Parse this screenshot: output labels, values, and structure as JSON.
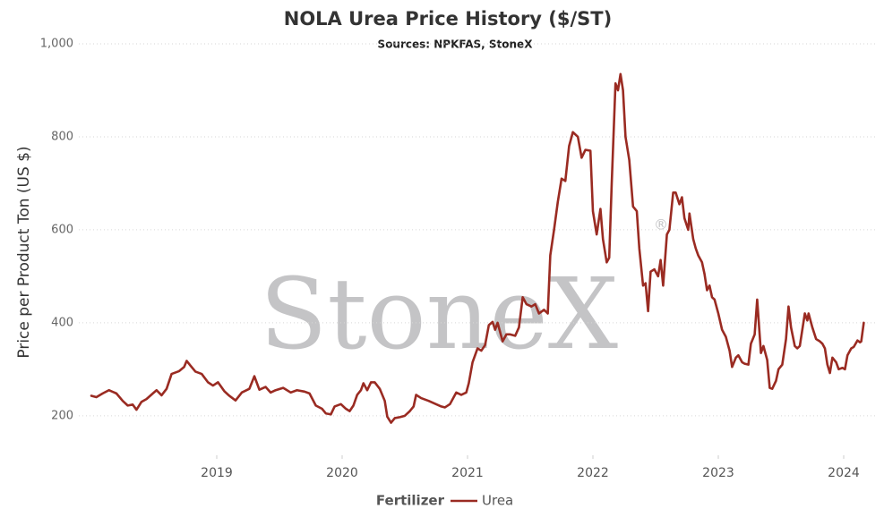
{
  "chart_data": {
    "type": "line",
    "title": "NOLA Urea Price History ($/ST)",
    "subtitle": "Sources: NPKFAS, StoneX",
    "y_label": "Price per Product Ton (US $)",
    "watermark": "StoneX",
    "watermark_mark": "®",
    "legend_title": "Fertilizer",
    "legend_position": "bottom",
    "grid": true,
    "xlim": [
      2017.9,
      2024.25
    ],
    "xticks": [
      2019,
      2020,
      2021,
      2022,
      2023,
      2024
    ],
    "ylim": [
      115,
      1000
    ],
    "yticks": [
      200,
      400,
      600,
      800,
      {
        "value": 1000,
        "label": "1,000"
      }
    ],
    "x": [
      2018.0,
      2018.04,
      2018.09,
      2018.14,
      2018.2,
      2018.25,
      2018.29,
      2018.33,
      2018.36,
      2018.4,
      2018.44,
      2018.49,
      2018.52,
      2018.56,
      2018.6,
      2018.64,
      2018.7,
      2018.74,
      2018.76,
      2018.79,
      2018.83,
      2018.88,
      2018.93,
      2018.97,
      2019.01,
      2019.06,
      2019.1,
      2019.15,
      2019.2,
      2019.26,
      2019.3,
      2019.34,
      2019.39,
      2019.43,
      2019.47,
      2019.53,
      2019.59,
      2019.64,
      2019.7,
      2019.74,
      2019.79,
      2019.84,
      2019.87,
      2019.91,
      2019.94,
      2019.99,
      2020.03,
      2020.06,
      2020.09,
      2020.12,
      2020.15,
      2020.17,
      2020.2,
      2020.23,
      2020.26,
      2020.3,
      2020.34,
      2020.36,
      2020.39,
      2020.42,
      2020.46,
      2020.5,
      2020.54,
      2020.57,
      2020.59,
      2020.63,
      2020.69,
      2020.74,
      2020.79,
      2020.82,
      2020.86,
      2020.89,
      2020.91,
      2020.95,
      2020.99,
      2021.01,
      2021.04,
      2021.08,
      2021.11,
      2021.14,
      2021.17,
      2021.2,
      2021.22,
      2021.24,
      2021.28,
      2021.31,
      2021.34,
      2021.38,
      2021.41,
      2021.44,
      2021.47,
      2021.51,
      2021.54,
      2021.57,
      2021.61,
      2021.64,
      2021.66,
      2021.69,
      2021.72,
      2021.75,
      2021.78,
      2021.81,
      2021.84,
      2021.88,
      2021.91,
      2021.94,
      2021.98,
      2022.0,
      2022.03,
      2022.06,
      2022.08,
      2022.11,
      2022.13,
      2022.15,
      2022.18,
      2022.2,
      2022.22,
      2022.24,
      2022.26,
      2022.29,
      2022.32,
      2022.35,
      2022.37,
      2022.4,
      2022.42,
      2022.44,
      2022.46,
      2022.49,
      2022.52,
      2022.54,
      2022.56,
      2022.59,
      2022.61,
      2022.64,
      2022.66,
      2022.69,
      2022.71,
      2022.73,
      2022.76,
      2022.77,
      2022.8,
      2022.82,
      2022.84,
      2022.87,
      2022.89,
      2022.91,
      2022.93,
      2022.95,
      2022.97,
      2023.0,
      2023.03,
      2023.06,
      2023.09,
      2023.11,
      2023.14,
      2023.16,
      2023.19,
      2023.21,
      2023.24,
      2023.26,
      2023.29,
      2023.31,
      2023.34,
      2023.36,
      2023.39,
      2023.41,
      2023.43,
      2023.46,
      2023.48,
      2023.51,
      2023.54,
      2023.56,
      2023.58,
      2023.61,
      2023.63,
      2023.65,
      2023.69,
      2023.71,
      2023.72,
      2023.75,
      2023.78,
      2023.81,
      2023.83,
      2023.85,
      2023.87,
      2023.89,
      2023.91,
      2023.94,
      2023.96,
      2023.99,
      2024.01,
      2024.03,
      2024.06,
      2024.08,
      2024.11,
      2024.13,
      2024.14,
      2024.16
    ],
    "series": [
      {
        "name": "Urea",
        "color": "#9a2b22",
        "values": [
          243,
          240,
          248,
          255,
          248,
          232,
          222,
          224,
          213,
          230,
          236,
          248,
          255,
          244,
          258,
          290,
          296,
          305,
          318,
          308,
          295,
          290,
          272,
          265,
          272,
          253,
          243,
          233,
          250,
          258,
          285,
          256,
          262,
          250,
          255,
          260,
          250,
          255,
          252,
          248,
          222,
          215,
          205,
          203,
          220,
          225,
          215,
          210,
          222,
          245,
          255,
          270,
          255,
          272,
          272,
          258,
          232,
          198,
          185,
          195,
          197,
          200,
          210,
          220,
          245,
          238,
          232,
          226,
          220,
          218,
          225,
          240,
          250,
          245,
          250,
          270,
          315,
          345,
          340,
          352,
          395,
          402,
          385,
          400,
          360,
          375,
          375,
          372,
          390,
          455,
          440,
          435,
          440,
          420,
          428,
          420,
          545,
          600,
          660,
          710,
          705,
          780,
          810,
          800,
          755,
          772,
          770,
          640,
          590,
          645,
          580,
          530,
          540,
          700,
          915,
          900,
          935,
          900,
          800,
          750,
          650,
          640,
          560,
          480,
          485,
          425,
          510,
          515,
          500,
          535,
          480,
          590,
          600,
          680,
          680,
          655,
          670,
          625,
          600,
          635,
          580,
          560,
          545,
          530,
          505,
          470,
          480,
          455,
          450,
          420,
          385,
          370,
          340,
          305,
          325,
          330,
          315,
          312,
          310,
          355,
          375,
          450,
          335,
          350,
          320,
          260,
          258,
          275,
          300,
          310,
          365,
          435,
          390,
          350,
          345,
          350,
          420,
          405,
          420,
          390,
          365,
          360,
          355,
          345,
          310,
          292,
          325,
          315,
          300,
          303,
          300,
          330,
          345,
          348,
          362,
          358,
          360,
          400
        ]
      }
    ]
  }
}
